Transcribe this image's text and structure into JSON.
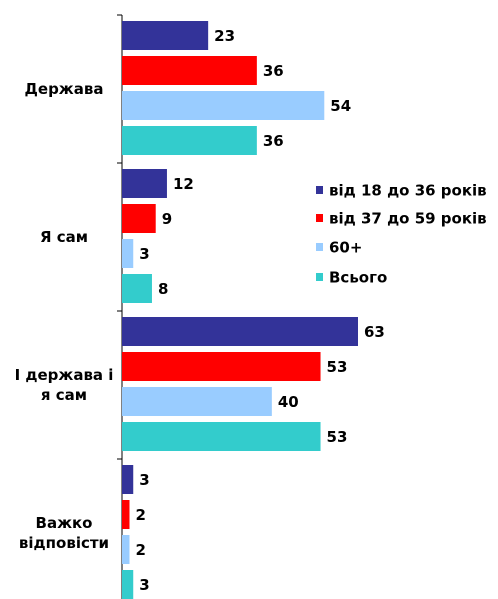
{
  "chart_data": {
    "type": "bar",
    "orientation": "horizontal",
    "categories": [
      "Держава",
      "Я сам",
      "І держава і я сам",
      "Важко відповісти"
    ],
    "series": [
      {
        "name": "від 18 до 36 років",
        "color": "#333399",
        "values": [
          23,
          12,
          63,
          3
        ]
      },
      {
        "name": "від 37 до 59 років",
        "color": "#ff0000",
        "values": [
          36,
          9,
          53,
          2
        ]
      },
      {
        "name": "60+",
        "color": "#99ccff",
        "values": [
          54,
          3,
          40,
          2
        ]
      },
      {
        "name": "Всього",
        "color": "#33cccc",
        "values": [
          36,
          8,
          53,
          3
        ]
      }
    ]
  }
}
